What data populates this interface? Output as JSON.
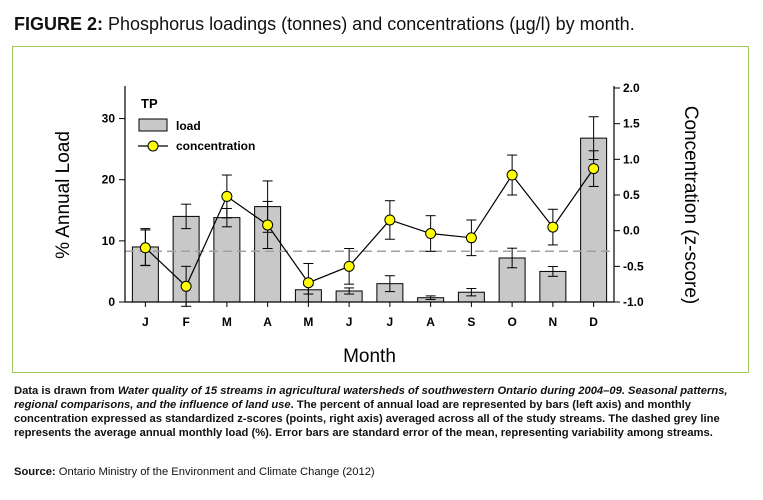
{
  "figure": {
    "label": "FIGURE 2:",
    "title": "Phosphorus loadings (tonnes) and concentrations (µg/l) by month."
  },
  "caption": {
    "lead": "Data is drawn from ",
    "source_title": "Water quality of 15 streams in agricultural watersheds of southwestern Ontario during 2004–09. Seasonal patterns, regional comparisons, and the influence of land use",
    "body": ". The percent of annual load are represented by bars (left axis) and monthly concentration expressed as standardized z-scores (points, right axis) averaged across all of the study streams. The dashed grey line represents the average annual monthly load (%). Error bars are standard error of the mean, representing variability among streams."
  },
  "source": {
    "label": "Source:",
    "text": "Ontario Ministry of the Environment and Climate Change (2012)"
  },
  "colors": {
    "bar": "#c8c8c8",
    "point": "#ffff00",
    "border": "#9ccb5c",
    "reference_line": "#a0a0a0"
  },
  "chart_data": {
    "type": "bar",
    "title": "TP",
    "xlabel": "Month",
    "ylabel_left": "% Annual Load",
    "ylabel_right": "Concentration (z-score)",
    "categories": [
      "J",
      "F",
      "M",
      "A",
      "M",
      "J",
      "J",
      "A",
      "S",
      "O",
      "N",
      "D"
    ],
    "ylim_left": [
      0,
      35
    ],
    "yticks_left": [
      "0",
      "10",
      "20",
      "30"
    ],
    "ylim_right": [
      -1.0,
      2.0
    ],
    "yticks_right": [
      "-1.0",
      "-0.5",
      "0.0",
      "0.5",
      "1.0",
      "1.5",
      "2.0"
    ],
    "reference_line": {
      "axis": "left",
      "value": 8.3,
      "style": "dashed"
    },
    "legend": {
      "position": "top-left"
    },
    "series": [
      {
        "name": "load",
        "type": "bar",
        "axis": "left",
        "values": [
          9.0,
          14.0,
          13.8,
          15.6,
          2.0,
          1.8,
          3.0,
          0.7,
          1.6,
          7.2,
          5.0,
          26.8
        ],
        "error": [
          3.0,
          2.0,
          1.5,
          4.2,
          0.7,
          0.5,
          1.3,
          0.3,
          0.6,
          1.6,
          0.8,
          3.5
        ]
      },
      {
        "name": "concentration",
        "type": "line",
        "axis": "right",
        "values": [
          -0.24,
          -0.78,
          0.48,
          0.08,
          -0.73,
          -0.5,
          0.15,
          -0.04,
          -0.1,
          0.78,
          0.05,
          0.87
        ],
        "error": [
          0.25,
          0.28,
          0.3,
          0.33,
          0.27,
          0.25,
          0.27,
          0.25,
          0.25,
          0.28,
          0.25,
          0.25
        ]
      }
    ]
  }
}
